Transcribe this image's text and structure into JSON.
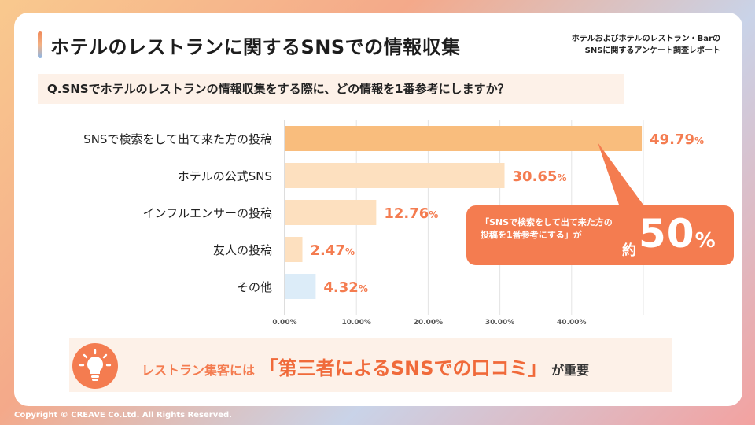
{
  "header": {
    "title": "ホテルのレストランに関するSNSでの情報収集",
    "report_line1": "ホテルおよびホテルのレストラン・Barの",
    "report_line2": "SNSに関するアンケート調査レポート"
  },
  "question": "Q.SNSでホテルのレストランの情報収集をする際に、どの情報を1番参考にしますか？",
  "chart_data": {
    "type": "bar",
    "orientation": "horizontal",
    "categories": [
      "SNSで検索をして出て来た方の投稿",
      "ホテルの公式SNS",
      "インフルエンサーの投稿",
      "友人の投稿",
      "その他"
    ],
    "values": [
      49.79,
      30.65,
      12.76,
      2.47,
      4.32
    ],
    "value_labels": [
      "49.79",
      "30.65",
      "12.76",
      "2.47",
      "4.32"
    ],
    "value_unit": "%",
    "x_ticks": [
      "0.00%",
      "10.00%",
      "20.00%",
      "30.00%",
      "40.00%"
    ],
    "xlim": [
      0,
      50
    ],
    "grid": true,
    "colors": [
      "#f9bd7d",
      "#fde0bf",
      "#fde0bf",
      "#fde0bf",
      "#dcecf8"
    ],
    "label_color": "#f47c50"
  },
  "callout": {
    "line1": "「SNSで検索をして出て来た方の",
    "line2": "投稿を1番参考にする」が",
    "yaku": "約",
    "big": "50",
    "pct": "%",
    "color": "#f47c50"
  },
  "banner": {
    "icon": "lightbulb-icon",
    "lead": "レストラン集客には",
    "main": "「第三者によるSNSでの口コミ」",
    "tail": "が重要"
  },
  "footer": {
    "copyright": "Copyright © CREAVE Co.Ltd. All Rights Reserved."
  }
}
